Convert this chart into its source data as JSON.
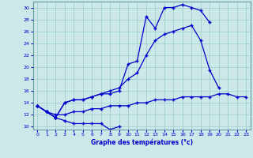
{
  "xlabel": "Graphe des températures (°c)",
  "background_color": "#cce8e8",
  "grid_color": "#99cccc",
  "line_color": "#0000cc",
  "hours": [
    0,
    1,
    2,
    3,
    4,
    5,
    6,
    7,
    8,
    9,
    10,
    11,
    12,
    13,
    14,
    15,
    16,
    17,
    18,
    19,
    20,
    21,
    22,
    23
  ],
  "line_min": [
    13.5,
    12.5,
    11.5,
    11.0,
    10.5,
    10.5,
    10.5,
    10.5,
    9.5,
    10.0,
    null,
    null,
    null,
    null,
    null,
    null,
    null,
    null,
    null,
    null,
    null,
    null,
    null,
    null
  ],
  "line_max": [
    13.5,
    12.5,
    11.5,
    14.0,
    14.5,
    14.5,
    15.0,
    15.5,
    15.5,
    16.0,
    20.5,
    21.0,
    28.5,
    26.5,
    30.0,
    30.0,
    30.5,
    30.0,
    29.5,
    27.5,
    null,
    null,
    null,
    null
  ],
  "line_mid": [
    13.5,
    12.5,
    11.5,
    14.0,
    14.5,
    14.5,
    15.0,
    15.5,
    16.0,
    16.5,
    18.0,
    19.0,
    22.0,
    24.5,
    25.5,
    26.0,
    26.5,
    27.0,
    24.5,
    19.5,
    16.5,
    null,
    null,
    null
  ],
  "line_flat": [
    13.5,
    12.5,
    12.0,
    12.0,
    12.5,
    12.5,
    13.0,
    13.0,
    13.5,
    13.5,
    13.5,
    14.0,
    14.0,
    14.5,
    14.5,
    14.5,
    15.0,
    15.0,
    15.0,
    15.0,
    15.5,
    15.5,
    15.0,
    15.0
  ],
  "ylim": [
    9.5,
    31
  ],
  "yticks": [
    10,
    12,
    14,
    16,
    18,
    20,
    22,
    24,
    26,
    28,
    30
  ],
  "xlim": [
    -0.5,
    23.5
  ],
  "xticks": [
    0,
    1,
    2,
    3,
    4,
    5,
    6,
    7,
    8,
    9,
    10,
    11,
    12,
    13,
    14,
    15,
    16,
    17,
    18,
    19,
    20,
    21,
    22,
    23
  ]
}
